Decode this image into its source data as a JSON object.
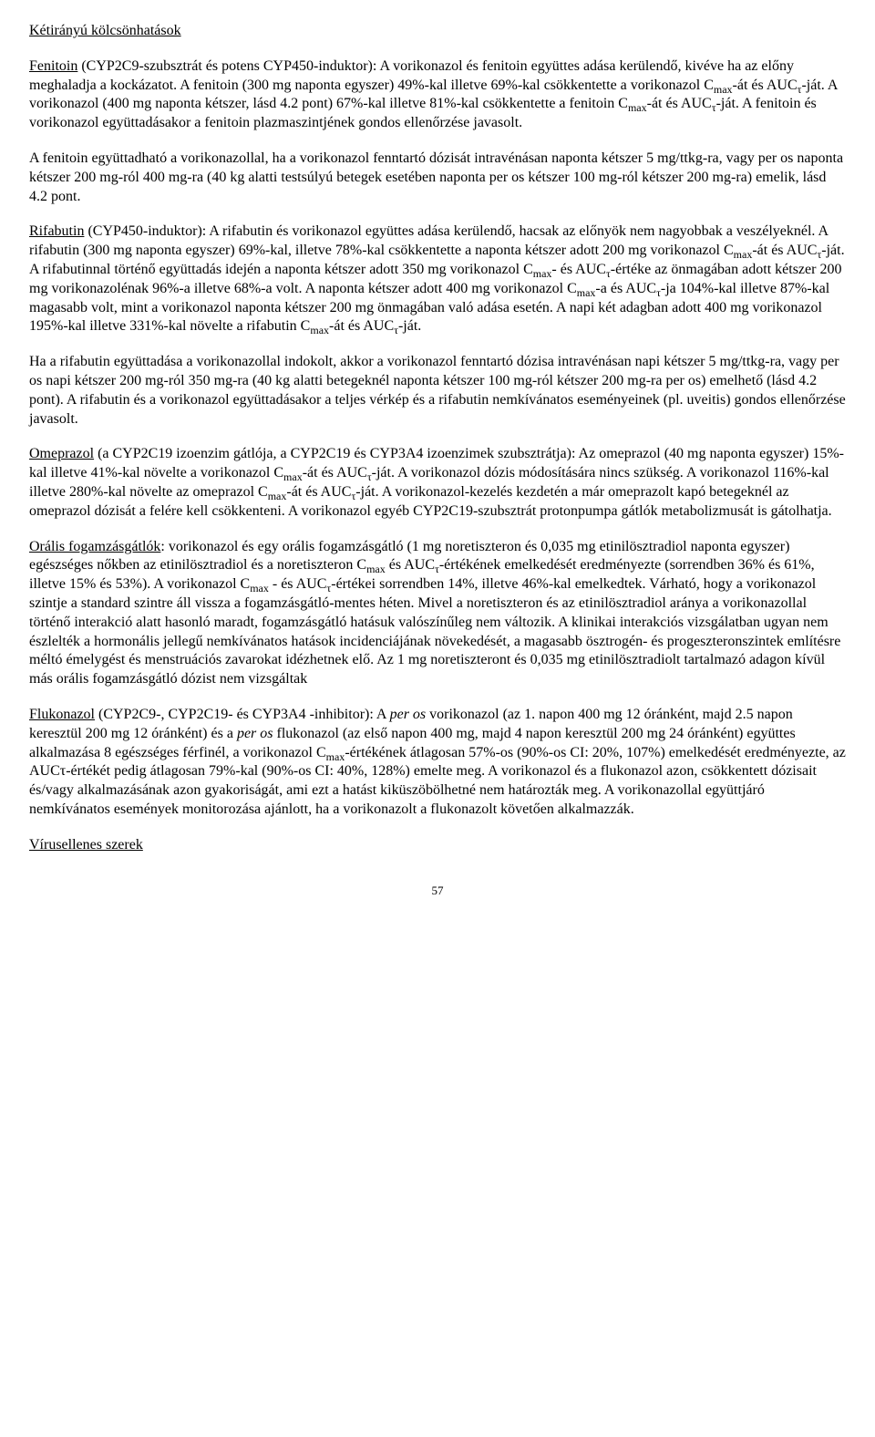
{
  "title": "Kétirányú kölcsönhatások",
  "para1_a": "Fenitoin",
  "para1_b": " (CYP2C9-szubsztrát és potens CYP450-induktor): A vorikonazol és fenitoin együttes adása kerülendő, kivéve ha az előny meghaladja a kockázatot. A fenitoin (300 mg naponta egyszer) 49%-kal illetve 69%-kal csökkentette a vorikonazol C",
  "para1_c": "-át és AUC",
  "para1_d": "-ját. A vorikonazol (400 mg naponta kétszer, lásd 4.2 pont) 67%-kal illetve 81%-kal csökkentette a fenitoin C",
  "para1_e": "-át és AUC",
  "para1_f": "-ját. A fenitoin és vorikonazol együttadásakor a fenitoin plazmaszintjének gondos ellenőrzése javasolt.",
  "para2": "A fenitoin együttadható a vorikonazollal, ha a vorikonazol fenntartó dózisát intravénásan naponta kétszer 5 mg/ttkg-ra, vagy per os naponta kétszer 200 mg-ról 400 mg-ra (40 kg alatti testsúlyú betegek esetében naponta per os kétszer 100 mg-ról kétszer 200 mg-ra) emelik, lásd 4.2 pont.",
  "para3_a": "Rifabutin",
  "para3_b": " (CYP450-induktor): A rifabutin és vorikonazol együttes adása kerülendő, hacsak az előnyök nem nagyobbak a veszélyeknél. A rifabutin (300 mg naponta egyszer) 69%-kal, illetve 78%-kal csökkentette a naponta kétszer adott 200 mg vorikonazol C",
  "para3_c": "-át és AUC",
  "para3_d": "-ját. A rifabutinnal történő együttadás idején a naponta kétszer adott 350 mg vorikonazol C",
  "para3_e": "- és AUC",
  "para3_f": "-értéke az önmagában adott kétszer 200 mg vorikonazolénak 96%-a illetve 68%-a volt. A naponta kétszer adott 400 mg vorikonazol C",
  "para3_g": "-a és AUC",
  "para3_h": "-ja 104%-kal illetve 87%-kal magasabb volt, mint a vorikonazol naponta kétszer 200 mg önmagában való adása esetén. A napi két adagban adott 400 mg vorikonazol 195%-kal illetve 331%-kal növelte a rifabutin C",
  "para3_i": "-át és AUC",
  "para3_j": "-ját.",
  "para4": "Ha a rifabutin együttadása a vorikonazollal indokolt, akkor a vorikonazol fenntartó dózisa intravénásan napi kétszer 5 mg/ttkg-ra, vagy per os napi kétszer 200 mg-ról 350 mg-ra (40 kg alatti betegeknél naponta kétszer 100 mg-ról kétszer 200 mg-ra per os) emelhető (lásd 4.2 pont). A rifabutin és a vorikonazol együttadásakor a teljes vérkép és a rifabutin nemkívánatos eseményeinek (pl. uveitis) gondos ellenőrzése javasolt.",
  "para5_a": "Omeprazol",
  "para5_b": " (a CYP2C19 izoenzim gátlója, a CYP2C19 és CYP3A4 izoenzimek szubsztrátja): Az omeprazol (40 mg naponta egyszer) 15%-kal illetve 41%-kal növelte a vorikonazol C",
  "para5_c": "-át és AUC",
  "para5_d": "-ját. A vorikonazol dózis módosítására nincs szükség. A vorikonazol 116%-kal illetve 280%-kal növelte az omeprazol C",
  "para5_e": "-át és AUC",
  "para5_f": "-ját. A vorikonazol-kezelés kezdetén a már omeprazolt kapó betegeknél az omeprazol dózisát a felére kell csökkenteni. A vorikonazol egyéb CYP2C19-szubsztrát protonpumpa gátlók metabolizmusát is gátolhatja.",
  "para6_a": "Orális fogamzásgátlók",
  "para6_b": ": vorikonazol és egy orális fogamzásgátló (1 mg noretiszteron és 0,035 mg etinilösztradiol naponta egyszer) egészséges nőkben az etinilösztradiol és a noretiszteron C",
  "para6_c": " és AUC",
  "para6_d": "-értékének emelkedését eredményezte (sorrendben 36% és 61%, illetve 15% és 53%). A vorikonazol C",
  "para6_e": " - és AUC",
  "para6_f": "-értékei sorrendben 14%, illetve 46%-kal emelkedtek. Várható, hogy a vorikonazol szintje a standard szintre áll vissza a fogamzásgátló-mentes héten. Mivel a noretiszteron és az etinilösztradiol aránya a vorikonazollal történő interakció alatt hasonló maradt, fogamzásgátló hatásuk valószínűleg nem változik. A klinikai interakciós vizsgálatban ugyan nem észlelték a hormonális jellegű nemkívánatos hatások incidenciájának növekedését, a magasabb ösztrogén- és progeszteronszintek említésre méltó émelygést és menstruációs zavarokat idézhetnek elő. Az 1 mg noretiszteront és 0,035 mg etinilösztradiolt tartalmazó adagon kívül más orális fogamzásgátló dózist nem vizsgáltak",
  "para7_a": "Flukonazol",
  "para7_b": " (CYP2C9-, CYP2C19- és CYP3A4 -inhibitor): A ",
  "para7_peros1": "per os",
  "para7_c": " vorikonazol (az 1. napon 400 mg 12 óránként, majd 2.5 napon keresztül 200 mg 12 óránként) és a ",
  "para7_peros2": "per os",
  "para7_d": " flukonazol (az első napon 400 mg, majd 4 napon keresztül 200 mg 24 óránként) együttes alkalmazása 8 egészséges férfinél, a vorikonazol C",
  "para7_e": "-értékének átlagosan 57%-os (90%-os CI: 20%, 107%) emelkedését eredményezte, az AUCτ-értékét pedig átlagosan 79%-kal (90%-os CI: 40%, 128%) emelte meg. A vorikonazol és a flukonazol azon, csökkentett dózisait és/vagy alkalmazásának azon gyakoriságát, ami ezt a hatást kiküszöbölhetné nem határozták meg. A vorikonazollal együttjáró nemkívánatos események monitorozása ajánlott, ha a vorikonazolt a flukonazolt követően alkalmazzák.",
  "section2": "Vírusellenes szerek",
  "pageNum": "57",
  "sub_max": "max",
  "sub_tau": "τ"
}
